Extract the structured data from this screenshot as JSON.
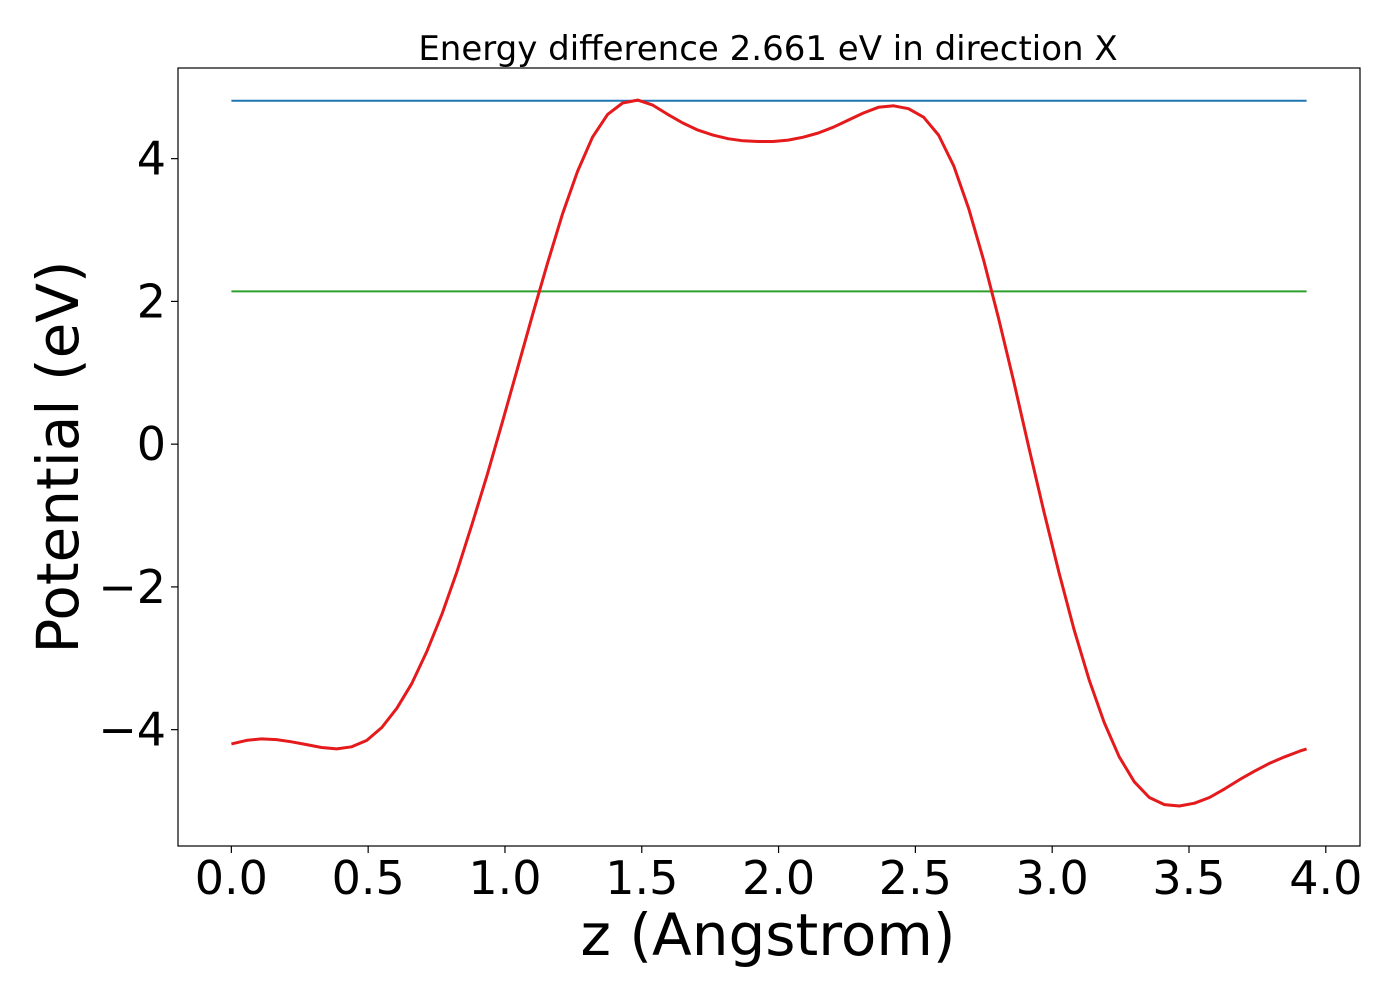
{
  "chart_data": {
    "type": "line",
    "title": "Energy difference 2.661 eV in direction X",
    "xlabel": "z (Angstrom)",
    "ylabel": "Potential (eV)",
    "xlim": [
      -0.195,
      4.125
    ],
    "ylim": [
      -5.63,
      5.27
    ],
    "xticks": [
      0.0,
      0.5,
      1.0,
      1.5,
      2.0,
      2.5,
      3.0,
      3.5,
      4.0
    ],
    "xtick_labels": [
      "0.0",
      "0.5",
      "1.0",
      "1.5",
      "2.0",
      "2.5",
      "3.0",
      "3.5",
      "4.0"
    ],
    "yticks": [
      -4,
      -2,
      0,
      2,
      4
    ],
    "ytick_labels": [
      "−4",
      "−2",
      "0",
      "2",
      "4"
    ],
    "grid": false,
    "legend": "none",
    "series": [
      {
        "color": "#1f77b4",
        "x": [
          0.0,
          3.93
        ],
        "y": [
          4.81,
          4.81
        ]
      },
      {
        "color": "#2ca02c",
        "x": [
          0.0,
          3.93
        ],
        "y": [
          2.14,
          2.14
        ]
      },
      {
        "color": "#e41a1c",
        "x": [
          0.0,
          0.055,
          0.11,
          0.165,
          0.22,
          0.275,
          0.33,
          0.385,
          0.44,
          0.495,
          0.55,
          0.605,
          0.66,
          0.715,
          0.77,
          0.825,
          0.88,
          0.935,
          0.99,
          1.045,
          1.1,
          1.155,
          1.21,
          1.265,
          1.32,
          1.375,
          1.43,
          1.485,
          1.54,
          1.595,
          1.65,
          1.705,
          1.76,
          1.815,
          1.87,
          1.925,
          1.98,
          2.035,
          2.09,
          2.145,
          2.2,
          2.255,
          2.31,
          2.365,
          2.42,
          2.475,
          2.53,
          2.585,
          2.64,
          2.695,
          2.75,
          2.805,
          2.86,
          2.915,
          2.97,
          3.025,
          3.08,
          3.135,
          3.19,
          3.245,
          3.3,
          3.355,
          3.41,
          3.465,
          3.52,
          3.575,
          3.63,
          3.685,
          3.74,
          3.795,
          3.85,
          3.905,
          3.93
        ],
        "y": [
          -4.2,
          -4.15,
          -4.13,
          -4.14,
          -4.17,
          -4.21,
          -4.25,
          -4.27,
          -4.24,
          -4.15,
          -3.97,
          -3.7,
          -3.35,
          -2.9,
          -2.38,
          -1.78,
          -1.12,
          -0.43,
          0.3,
          1.05,
          1.8,
          2.53,
          3.22,
          3.82,
          4.3,
          4.62,
          4.78,
          4.82,
          4.75,
          4.62,
          4.5,
          4.4,
          4.33,
          4.28,
          4.25,
          4.24,
          4.24,
          4.26,
          4.3,
          4.36,
          4.44,
          4.54,
          4.64,
          4.72,
          4.74,
          4.7,
          4.58,
          4.33,
          3.9,
          3.3,
          2.57,
          1.75,
          0.87,
          -0.05,
          -0.95,
          -1.8,
          -2.6,
          -3.3,
          -3.9,
          -4.38,
          -4.73,
          -4.95,
          -5.05,
          -5.07,
          -5.03,
          -4.95,
          -4.83,
          -4.7,
          -4.58,
          -4.47,
          -4.38,
          -4.3,
          -4.27
        ]
      }
    ]
  }
}
